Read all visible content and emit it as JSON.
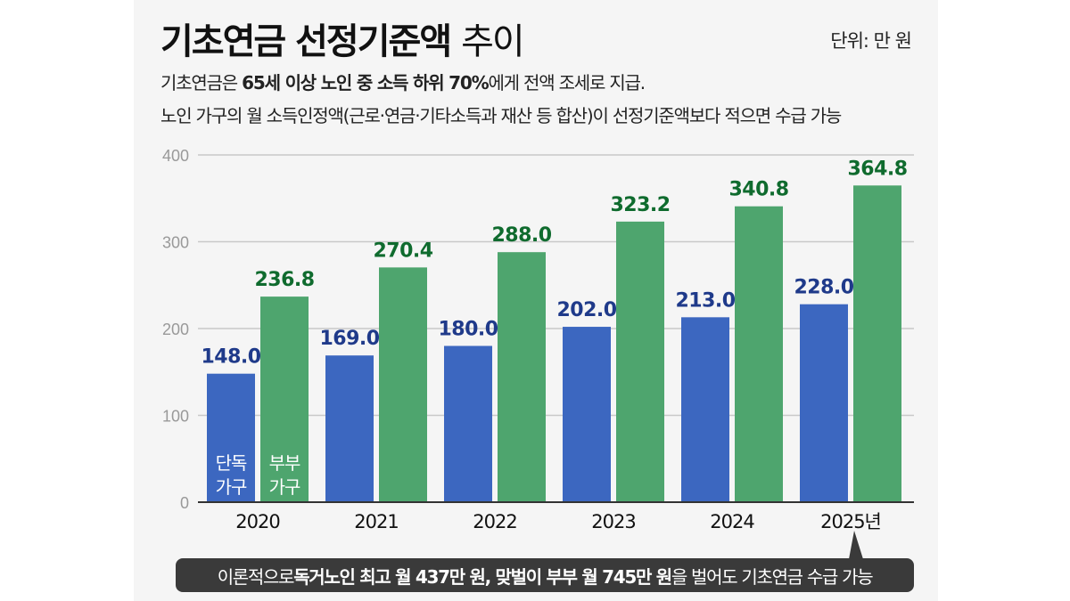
{
  "header": {
    "title_bold": "기초연금 선정기준액",
    "title_light": "추이",
    "unit": "단위: 만 원",
    "line1": [
      "기초연금은 ",
      "65세 이상 노인 중 소득 하위 70%",
      "에게 전액 조세로 지급."
    ],
    "line2": "노인 가구의 월 소득인정액(근로·연금·기타소득과 재산 등 합산)이 선정기준액보다 적으면 수급 가능"
  },
  "callout": [
    "이론적으로 ",
    "독거노인 최고 월 437만 원, 맞벌이 부부 월 745만 원",
    "을 벌어도 기초연금 수급 가능"
  ],
  "chart_data": {
    "type": "bar",
    "categories": [
      "2020",
      "2021",
      "2022",
      "2023",
      "2024",
      "2025년"
    ],
    "series": [
      {
        "name": "단독 가구",
        "values": [
          148.0,
          169.0,
          180.0,
          202.0,
          213.0,
          228.0
        ],
        "color": "#3c67c0",
        "label_color": "#1f3a8a"
      },
      {
        "name": "부부 가구",
        "values": [
          236.8,
          270.4,
          288.0,
          323.2,
          340.8,
          364.8
        ],
        "color": "#4ea56e",
        "label_color": "#0f6b2e"
      }
    ],
    "ylim": [
      0,
      400
    ],
    "yticks": [
      0,
      100,
      200,
      300,
      400
    ],
    "grid": true
  }
}
